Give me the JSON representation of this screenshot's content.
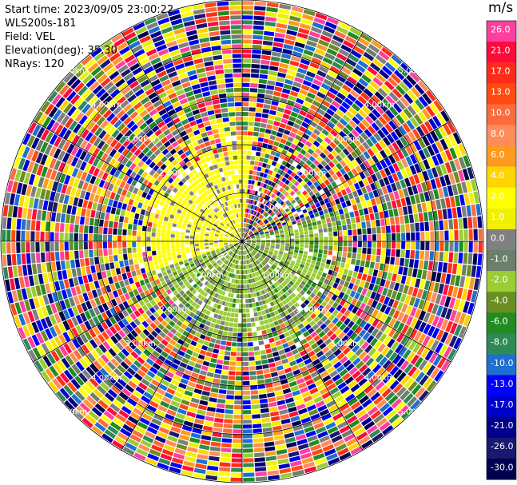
{
  "header": {
    "start_time": "Start time: 2023/09/05 23:00:22",
    "station": "WLS200s-181",
    "field": "Field: VEL",
    "elevation": "Elevation(deg): 35.30",
    "nrays": "NRays: 120"
  },
  "colorbar": {
    "unit": "m/s",
    "labels": [
      "26.0",
      "21.0",
      "17.0",
      "13.0",
      "10.0",
      "8.0",
      "6.0",
      "4.0",
      "2.0",
      "1.0",
      "0.0",
      "-1.0",
      "-2.0",
      "-4.0",
      "-6.0",
      "-8.0",
      "-10.0",
      "-13.0",
      "-17.0",
      "-21.0",
      "-26.0",
      "-30.0"
    ],
    "colors": [
      "#ff3fa0",
      "#ff0a3c",
      "#ff2b1a",
      "#ff4a12",
      "#ff6a3a",
      "#ff8c5a",
      "#ff9a20",
      "#ffd400",
      "#ffff00",
      "#f0f000",
      "#808080",
      "#6b7f6b",
      "#9acd32",
      "#6b8e23",
      "#228b22",
      "#2e8b57",
      "#1e6fd0",
      "#0000ff",
      "#0000cd",
      "#00008b",
      "#191970",
      "#000050"
    ]
  },
  "chart_data": {
    "type": "ppi",
    "field": "VEL",
    "unit": "m/s",
    "nrays": 120,
    "elevation_deg": 35.3,
    "range_ring_labels": [
      "1.00km",
      "2.00km",
      "3.00km",
      "4.00km",
      "5.00km"
    ],
    "range_rings_km": [
      1,
      2,
      3,
      4,
      5
    ],
    "spoke_angles_deg": [
      0,
      30,
      60,
      90,
      120,
      150,
      180,
      210,
      240,
      270,
      300,
      330
    ],
    "color_levels": [
      26.0,
      21.0,
      17.0,
      13.0,
      10.0,
      8.0,
      6.0,
      4.0,
      2.0,
      1.0,
      0.0,
      -1.0,
      -2.0,
      -4.0,
      -6.0,
      -8.0,
      -10.0,
      -13.0,
      -17.0,
      -21.0,
      -26.0,
      -30.0
    ],
    "velocity_pattern": {
      "inner_north_west_sector": "positive ~2 to 4 m/s (yellow)",
      "inner_south_sector": "negative ~-1 to -4 m/s (green)",
      "outer_region": "noisy, full range -30 to 26 m/s"
    }
  }
}
